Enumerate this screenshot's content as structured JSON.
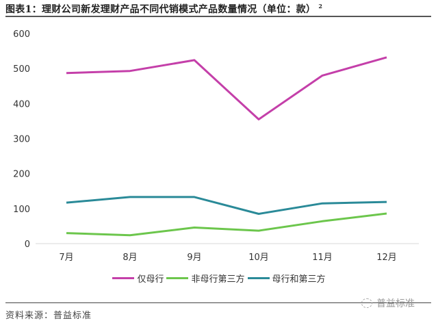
{
  "header": {
    "title": "图表1：理财公司新发理财产品不同代销模式产品数量情况（单位：款）",
    "footnote": "2"
  },
  "legend": [
    {
      "label": "仅母行",
      "color": "#c43fa9"
    },
    {
      "label": "非母行第三方",
      "color": "#6cc64c"
    },
    {
      "label": "母行和第三方",
      "color": "#2a8a98"
    }
  ],
  "footer": {
    "source": "资料来源：普益标准",
    "watermark": "普益标准"
  },
  "chart_data": {
    "type": "line",
    "title": "理财公司新发理财产品不同代销模式产品数量情况（单位：款）",
    "xlabel": "",
    "ylabel": "",
    "categories": [
      "7月",
      "8月",
      "9月",
      "10月",
      "11月",
      "12月"
    ],
    "series": [
      {
        "name": "仅母行",
        "color": "#c43fa9",
        "values": [
          487,
          493,
          524,
          355,
          480,
          532
        ]
      },
      {
        "name": "非母行第三方",
        "color": "#6cc64c",
        "values": [
          30,
          24,
          46,
          37,
          64,
          86
        ]
      },
      {
        "name": "母行和第三方",
        "color": "#2a8a98",
        "values": [
          117,
          133,
          133,
          85,
          115,
          119
        ]
      }
    ],
    "yticks": [
      "0",
      "100",
      "200",
      "300",
      "400",
      "500",
      "600"
    ],
    "ylim": [
      0,
      600
    ],
    "grid": false,
    "legend_position": "bottom"
  }
}
